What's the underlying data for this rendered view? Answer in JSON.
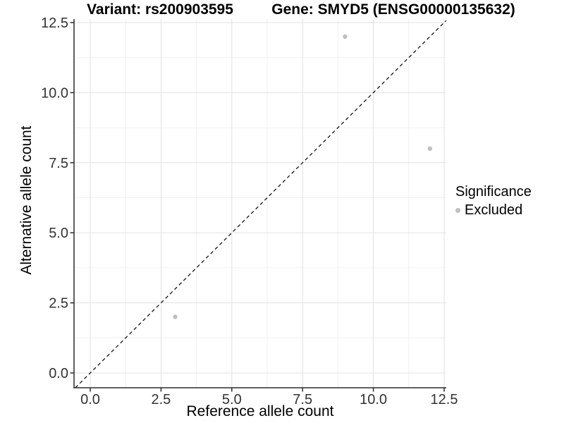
{
  "figure": {
    "title_variant": "Variant: rs200903595",
    "title_gene": "Gene: SMYD5 (ENSG00000135632)"
  },
  "legend": {
    "title": "Significance",
    "items": [
      {
        "label": "Excluded",
        "color": "#bfbfbf"
      }
    ]
  },
  "colors": {
    "background": "#ffffff",
    "point": "#bfbfbf",
    "grid_major": "#e2e2e2",
    "grid_minor": "#f0f0f0",
    "axis_line": "#2b2b2b",
    "tick_mark": "#2b2b2b",
    "tick_text": "#333333",
    "identity_line": "#000000",
    "title_text": "#000000"
  },
  "chart_data": {
    "type": "scatter",
    "title": "Variant: rs200903595 — Gene: SMYD5 (ENSG00000135632)",
    "xlabel": "Reference allele count",
    "ylabel": "Alternative allele count",
    "x_ticks": [
      "0.0",
      "2.5",
      "5.0",
      "7.5",
      "10.0",
      "12.5"
    ],
    "y_ticks": [
      "0.0",
      "2.5",
      "5.0",
      "7.5",
      "10.0",
      "12.5"
    ],
    "xlim": [
      -0.57,
      12.58
    ],
    "ylim": [
      -0.53,
      12.63
    ],
    "grid": "major and minor gridlines on, white panel background",
    "legend_position": "right",
    "series": [
      {
        "name": "Excluded",
        "color": "#bfbfbf",
        "points": [
          {
            "x": 3,
            "y": 2
          },
          {
            "x": 9,
            "y": 12
          },
          {
            "x": 12,
            "y": 8
          }
        ]
      }
    ],
    "reference_line": {
      "type": "identity y=x",
      "style": "dashed",
      "color": "#000000"
    }
  }
}
